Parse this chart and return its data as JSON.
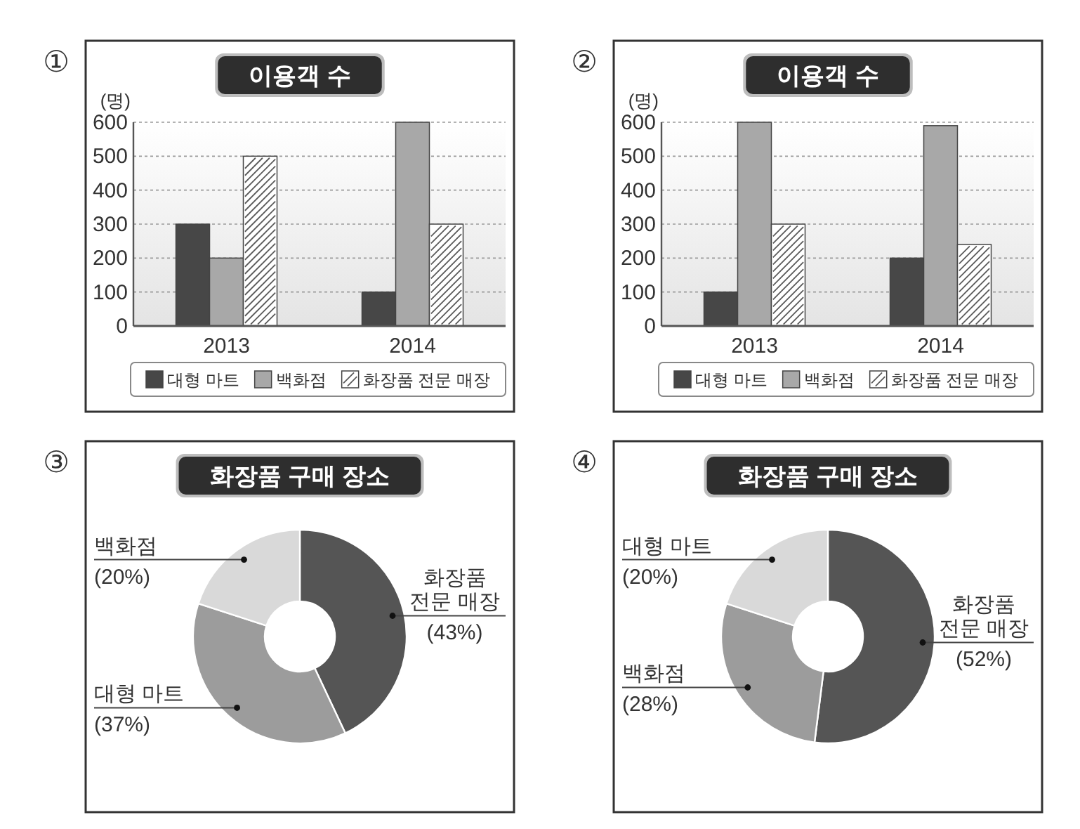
{
  "chart_data": [
    {
      "type": "bar",
      "title": "이용객 수",
      "ylabel": "(명)",
      "categories": [
        "2013",
        "2014"
      ],
      "series": [
        {
          "name": "대형 마트",
          "color": "#474747",
          "values": [
            300,
            100
          ]
        },
        {
          "name": "백화점",
          "color": "#a8a8a8",
          "values": [
            200,
            600
          ]
        },
        {
          "name": "화장품 전문 매장",
          "color": "#ffffff",
          "values": [
            500,
            300
          ]
        }
      ],
      "ylim": [
        0,
        600
      ],
      "yticks": [
        0,
        100,
        200,
        300,
        400,
        500,
        600
      ],
      "grid": "y",
      "legend": "bottom",
      "annotations": [
        "①"
      ]
    },
    {
      "type": "bar",
      "title": "이용객 수",
      "ylabel": "(명)",
      "categories": [
        "2013",
        "2014"
      ],
      "series": [
        {
          "name": "대형 마트",
          "color": "#474747",
          "values": [
            100,
            200
          ]
        },
        {
          "name": "백화점",
          "color": "#a8a8a8",
          "values": [
            600,
            590
          ]
        },
        {
          "name": "화장품 전문 매장",
          "color": "#ffffff",
          "values": [
            300,
            240
          ]
        }
      ],
      "ylim": [
        0,
        600
      ],
      "yticks": [
        0,
        100,
        200,
        300,
        400,
        500,
        600
      ],
      "grid": "y",
      "legend": "bottom",
      "annotations": [
        "②"
      ]
    },
    {
      "type": "donut",
      "title": "화장품 구매 장소",
      "categories": [
        "화장품 전문 매장",
        "대형 마트",
        "백화점"
      ],
      "values": [
        43,
        37,
        20
      ],
      "colors": [
        "#555555",
        "#9c9c9c",
        "#d9d9d9"
      ],
      "value_labels": [
        "(43%)",
        "(37%)",
        "(20%)"
      ],
      "annotations": [
        "③"
      ]
    },
    {
      "type": "donut",
      "title": "화장품 구매 장소",
      "categories": [
        "화장품 전문 매장",
        "백화점",
        "대형 마트"
      ],
      "values": [
        52,
        28,
        20
      ],
      "colors": [
        "#555555",
        "#9c9c9c",
        "#d9d9d9"
      ],
      "value_labels": [
        "(52%)",
        "(28%)",
        "(20%)"
      ],
      "annotations": [
        "④"
      ]
    }
  ]
}
